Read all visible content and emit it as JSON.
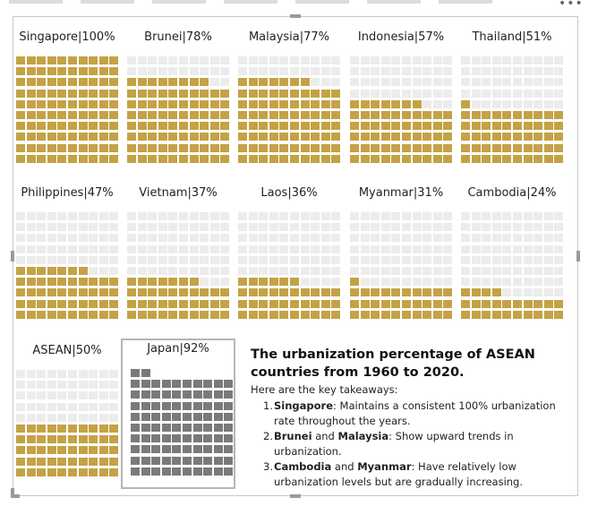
{
  "colors": {
    "filled": "#c4a245",
    "empty": "#ececec",
    "japan": "#7a7a7a",
    "japan_empty": "#7a7a7a"
  },
  "menu_icon": "more-dots-icon",
  "chart_data": {
    "type": "waffle",
    "grid": "10x10",
    "panels": [
      {
        "label": "Singapore|100%",
        "country": "Singapore",
        "value": 100
      },
      {
        "label": "Brunei|78%",
        "country": "Brunei",
        "value": 78
      },
      {
        "label": "Malaysia|77%",
        "country": "Malaysia",
        "value": 77
      },
      {
        "label": "Indonesia|57%",
        "country": "Indonesia",
        "value": 57
      },
      {
        "label": "Thailand|51%",
        "country": "Thailand",
        "value": 51
      },
      {
        "label": "Philippines|47%",
        "country": "Philippines",
        "value": 47
      },
      {
        "label": "Vietnam|37%",
        "country": "Vietnam",
        "value": 37
      },
      {
        "label": "Laos|36%",
        "country": "Laos",
        "value": 36
      },
      {
        "label": "Myanmar|31%",
        "country": "Myanmar",
        "value": 31
      },
      {
        "label": "Cambodia|24%",
        "country": "Cambodia",
        "value": 24
      },
      {
        "label": "ASEAN|50%",
        "country": "ASEAN",
        "value": 50
      },
      {
        "label": "Japan|92%",
        "country": "Japan",
        "value": 92
      }
    ]
  },
  "notes": {
    "title": "The urbanization percentage of ASEAN countries from 1960 to 2020.",
    "intro": "Here are the key takeaways:",
    "items": [
      {
        "num": "1.",
        "bold1": "Singapore",
        "mid": "",
        "bold2": "",
        "rest": ": Maintains a consistent 100% urbanization rate throughout the years."
      },
      {
        "num": "2.",
        "bold1": "Brunei",
        "mid": " and ",
        "bold2": "Malaysia",
        "rest": ": Show upward trends in urbanization."
      },
      {
        "num": "3.",
        "bold1": "Cambodia",
        "mid": " and ",
        "bold2": "Myanmar",
        "rest": ": Have relatively low urbanization levels but are gradually increasing."
      }
    ]
  }
}
